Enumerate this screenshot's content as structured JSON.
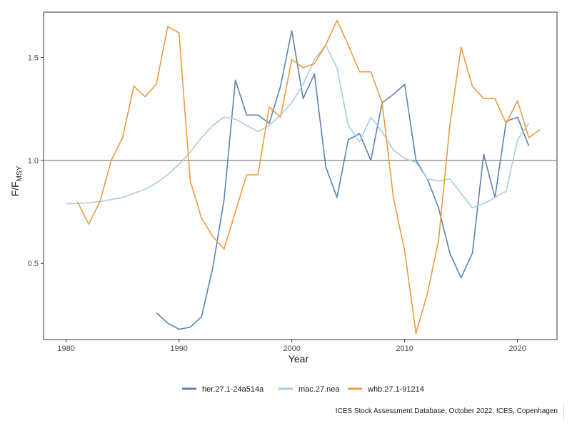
{
  "chart_data": {
    "type": "line",
    "title": "",
    "xlabel": "Year",
    "ylabel_main": "F/F",
    "ylabel_sub": "MSY",
    "xlim": [
      1978,
      2023.5
    ],
    "ylim": [
      0.13,
      1.72
    ],
    "x_ticks": [
      1980,
      1990,
      2000,
      2010,
      2020
    ],
    "y_ticks": [
      0.5,
      1.0,
      1.5
    ],
    "y_tick_labels": [
      "0.5",
      "1.0",
      "1.5"
    ],
    "reference_line": 1.0,
    "grid": false,
    "legend_position": "bottom",
    "series": [
      {
        "name": "her.27.1-24a514a",
        "color": "#5b84ad",
        "x": [
          1988,
          1989,
          1990,
          1991,
          1992,
          1993,
          1994,
          1995,
          1996,
          1997,
          1998,
          1999,
          2000,
          2001,
          2002,
          2003,
          2004,
          2005,
          2006,
          2007,
          2008,
          2009,
          2010,
          2011,
          2012,
          2013,
          2014,
          2015,
          2016,
          2017,
          2018,
          2019,
          2020,
          2021
        ],
        "y": [
          0.26,
          0.21,
          0.18,
          0.19,
          0.24,
          0.48,
          0.81,
          1.39,
          1.22,
          1.22,
          1.18,
          1.36,
          1.63,
          1.3,
          1.42,
          0.97,
          0.82,
          1.1,
          1.13,
          1.0,
          1.28,
          1.32,
          1.37,
          1.0,
          0.91,
          0.77,
          0.55,
          0.43,
          0.55,
          1.03,
          0.82,
          1.19,
          1.21,
          1.07
        ]
      },
      {
        "name": "mac.27.nea",
        "color": "#a6cee3",
        "x": [
          1980,
          1981,
          1982,
          1983,
          1984,
          1985,
          1986,
          1987,
          1988,
          1989,
          1990,
          1991,
          1992,
          1993,
          1994,
          1995,
          1996,
          1997,
          1998,
          1999,
          2000,
          2001,
          2002,
          2003,
          2004,
          2005,
          2006,
          2007,
          2008,
          2009,
          2010,
          2011,
          2012,
          2013,
          2014,
          2015,
          2016,
          2017,
          2018,
          2019,
          2020,
          2021
        ],
        "y": [
          0.79,
          0.79,
          0.795,
          0.8,
          0.81,
          0.82,
          0.84,
          0.86,
          0.89,
          0.93,
          0.98,
          1.04,
          1.11,
          1.17,
          1.21,
          1.2,
          1.17,
          1.14,
          1.17,
          1.22,
          1.28,
          1.37,
          1.49,
          1.56,
          1.45,
          1.17,
          1.09,
          1.21,
          1.14,
          1.05,
          1.01,
          0.99,
          0.91,
          0.9,
          0.91,
          0.84,
          0.77,
          0.79,
          0.82,
          0.85,
          1.1,
          1.18
        ]
      },
      {
        "name": "whb.27.1-91214",
        "color": "#ef9a3d",
        "x": [
          1981,
          1982,
          1983,
          1984,
          1985,
          1986,
          1987,
          1988,
          1989,
          1990,
          1991,
          1992,
          1993,
          1994,
          1995,
          1996,
          1997,
          1998,
          1999,
          2000,
          2001,
          2002,
          2003,
          2004,
          2005,
          2006,
          2007,
          2008,
          2009,
          2010,
          2011,
          2012,
          2013,
          2014,
          2015,
          2016,
          2017,
          2018,
          2019,
          2020,
          2021,
          2022
        ],
        "y": [
          0.8,
          0.69,
          0.8,
          1.0,
          1.11,
          1.36,
          1.31,
          1.37,
          1.65,
          1.62,
          0.9,
          0.72,
          0.63,
          0.57,
          0.75,
          0.93,
          0.93,
          1.26,
          1.21,
          1.49,
          1.45,
          1.47,
          1.56,
          1.68,
          1.56,
          1.43,
          1.43,
          1.28,
          0.82,
          0.56,
          0.16,
          0.35,
          0.61,
          1.17,
          1.55,
          1.36,
          1.3,
          1.3,
          1.18,
          1.29,
          1.11,
          1.15
        ]
      }
    ]
  },
  "caption": "ICES Stock Assessment Database, October 2022. ICES, Copenhagen"
}
